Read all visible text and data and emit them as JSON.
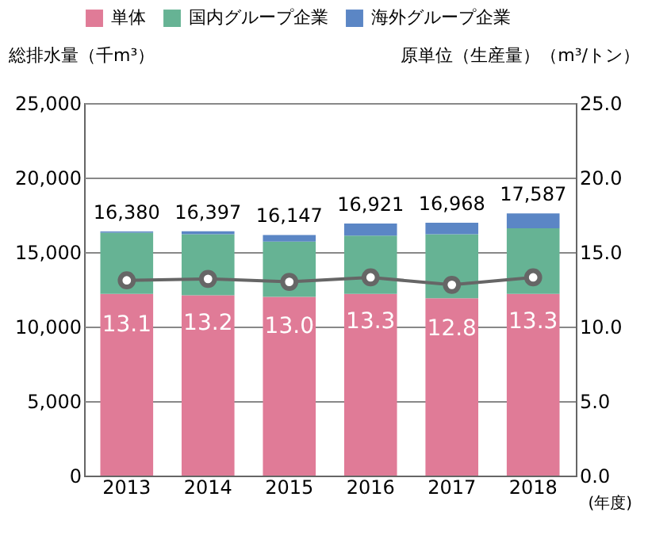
{
  "chart_data": {
    "type": "bar",
    "stacked": true,
    "categories": [
      "2013",
      "2014",
      "2015",
      "2016",
      "2017",
      "2018"
    ],
    "xlabel": "(年度)",
    "ylabel": "総排水量（千m³）",
    "y2label": "原単位（生産量）（m³/トン）",
    "series": [
      {
        "name": "単体",
        "color": "#e07b97",
        "values": [
          12200,
          12100,
          12000,
          12200,
          11900,
          12200
        ]
      },
      {
        "name": "国内グループ企業",
        "color": "#66b394",
        "values": [
          4100,
          4100,
          3700,
          3900,
          4300,
          4400
        ]
      },
      {
        "name": "海外グループ企業",
        "color": "#5b86c5",
        "values": [
          80,
          197,
          447,
          821,
          768,
          987
        ]
      },
      {
        "type": "line",
        "axis": "y2",
        "color": "#666666",
        "marker": "circle",
        "values": [
          13.1,
          13.2,
          13.0,
          13.3,
          12.8,
          13.3
        ],
        "value_labels": [
          "13.1",
          "13.2",
          "13.0",
          "13.3",
          "12.8",
          "13.3"
        ]
      }
    ],
    "totals": [
      "16,380",
      "16,397",
      "16,147",
      "16,921",
      "16,968",
      "17,587"
    ],
    "ylim": [
      0,
      25000
    ],
    "yticks": [
      {
        "value": 0,
        "label": "0"
      },
      {
        "value": 5000,
        "label": "5,000"
      },
      {
        "value": 10000,
        "label": "10,000"
      },
      {
        "value": 15000,
        "label": "15,000"
      },
      {
        "value": 20000,
        "label": "20,000"
      },
      {
        "value": 25000,
        "label": "25,000"
      }
    ],
    "y2lim": [
      0,
      25
    ],
    "y2ticks": [
      {
        "value": 0,
        "label": "0.0"
      },
      {
        "value": 5,
        "label": "5.0"
      },
      {
        "value": 10,
        "label": "10.0"
      },
      {
        "value": 15,
        "label": "15.0"
      },
      {
        "value": 20,
        "label": "20.0"
      },
      {
        "value": 25,
        "label": "25.0"
      }
    ],
    "grid": "y",
    "legend": "top"
  }
}
